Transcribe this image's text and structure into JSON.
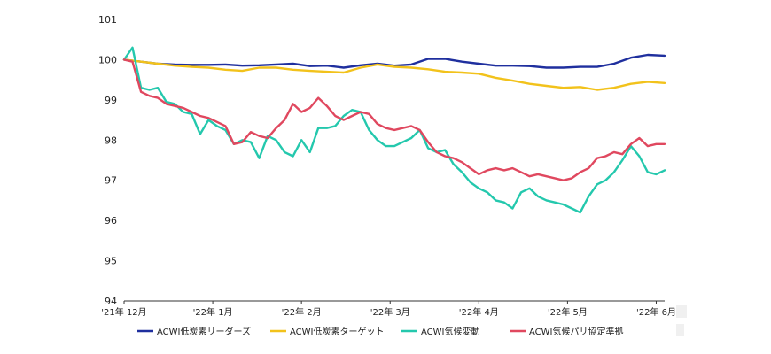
{
  "chart_data": {
    "type": "line",
    "title": "",
    "xlabel": "",
    "ylabel": "",
    "ylim": [
      94,
      101
    ],
    "yticks": [
      94,
      95,
      96,
      97,
      98,
      99,
      100,
      101
    ],
    "x_tick_labels": [
      "'21年 12月",
      "'22年 1月",
      "'22年 2月",
      "'22年 3月",
      "'22年 4月",
      "'22年 5月",
      "'22年 6月"
    ],
    "x_tick_index": [
      0,
      21,
      42,
      63,
      84,
      105,
      126
    ],
    "x_range": [
      0,
      128
    ],
    "legend_position": "bottom",
    "grid": false,
    "series": [
      {
        "name": "ACWI低炭素リーダーズ",
        "color": "#1f2f9e",
        "x": [
          0,
          4,
          8,
          12,
          16,
          20,
          24,
          28,
          32,
          36,
          40,
          44,
          48,
          52,
          56,
          60,
          64,
          68,
          72,
          76,
          80,
          84,
          88,
          92,
          96,
          100,
          104,
          108,
          112,
          116,
          120,
          124,
          128
        ],
        "values": [
          100.0,
          99.95,
          99.9,
          99.88,
          99.87,
          99.87,
          99.88,
          99.85,
          99.86,
          99.88,
          99.9,
          99.84,
          99.85,
          99.8,
          99.86,
          99.9,
          99.85,
          99.88,
          100.02,
          100.02,
          99.95,
          99.9,
          99.85,
          99.85,
          99.84,
          99.8,
          99.8,
          99.82,
          99.82,
          99.9,
          100.05,
          100.12,
          100.1
        ]
      },
      {
        "name": "ACWI低炭素ターゲット",
        "color": "#f2c21b",
        "x": [
          0,
          4,
          8,
          12,
          16,
          20,
          24,
          28,
          32,
          36,
          40,
          44,
          48,
          52,
          56,
          60,
          64,
          68,
          72,
          76,
          80,
          84,
          88,
          92,
          96,
          100,
          104,
          108,
          112,
          116,
          120,
          124,
          128
        ],
        "values": [
          100.0,
          99.95,
          99.9,
          99.85,
          99.82,
          99.8,
          99.75,
          99.72,
          99.8,
          99.8,
          99.75,
          99.72,
          99.7,
          99.68,
          99.8,
          99.88,
          99.82,
          99.8,
          99.76,
          99.7,
          99.68,
          99.65,
          99.55,
          99.48,
          99.4,
          99.35,
          99.3,
          99.32,
          99.25,
          99.3,
          99.4,
          99.45,
          99.42
        ]
      },
      {
        "name": "ACWI気候変動",
        "color": "#24c8ad",
        "x": [
          0,
          2,
          4,
          6,
          8,
          10,
          12,
          14,
          16,
          18,
          20,
          22,
          24,
          26,
          28,
          30,
          32,
          34,
          36,
          38,
          40,
          42,
          44,
          46,
          48,
          50,
          52,
          54,
          56,
          58,
          60,
          62,
          64,
          66,
          68,
          70,
          72,
          74,
          76,
          78,
          80,
          82,
          84,
          86,
          88,
          90,
          92,
          94,
          96,
          98,
          100,
          102,
          104,
          106,
          108,
          110,
          112,
          114,
          116,
          118,
          120,
          122,
          124,
          126,
          128
        ],
        "values": [
          100.0,
          100.3,
          99.3,
          99.25,
          99.3,
          98.95,
          98.9,
          98.7,
          98.65,
          98.15,
          98.5,
          98.35,
          98.25,
          97.9,
          98.0,
          97.95,
          97.55,
          98.1,
          98.0,
          97.7,
          97.6,
          98.0,
          97.7,
          98.3,
          98.3,
          98.35,
          98.6,
          98.75,
          98.7,
          98.25,
          98.0,
          97.85,
          97.85,
          97.95,
          98.05,
          98.25,
          97.8,
          97.7,
          97.75,
          97.4,
          97.2,
          96.95,
          96.8,
          96.7,
          96.5,
          96.45,
          96.3,
          96.7,
          96.8,
          96.6,
          96.5,
          96.45,
          96.4,
          96.3,
          96.2,
          96.6,
          96.9,
          97.0,
          97.2,
          97.5,
          97.85,
          97.6,
          97.2,
          97.15,
          97.25
        ]
      },
      {
        "name": "ACWI気候パリ協定準拠",
        "color": "#e0485f",
        "x": [
          0,
          2,
          4,
          6,
          8,
          10,
          12,
          14,
          16,
          18,
          20,
          22,
          24,
          26,
          28,
          30,
          32,
          34,
          36,
          38,
          40,
          42,
          44,
          46,
          48,
          50,
          52,
          54,
          56,
          58,
          60,
          62,
          64,
          66,
          68,
          70,
          72,
          74,
          76,
          78,
          80,
          82,
          84,
          86,
          88,
          90,
          92,
          94,
          96,
          98,
          100,
          102,
          104,
          106,
          108,
          110,
          112,
          114,
          116,
          118,
          120,
          122,
          124,
          126,
          128
        ],
        "values": [
          100.0,
          99.95,
          99.2,
          99.1,
          99.05,
          98.9,
          98.85,
          98.8,
          98.7,
          98.6,
          98.55,
          98.45,
          98.35,
          97.9,
          97.95,
          98.2,
          98.1,
          98.05,
          98.3,
          98.5,
          98.9,
          98.7,
          98.8,
          99.05,
          98.85,
          98.6,
          98.5,
          98.6,
          98.7,
          98.65,
          98.4,
          98.3,
          98.25,
          98.3,
          98.35,
          98.25,
          97.95,
          97.7,
          97.6,
          97.55,
          97.45,
          97.3,
          97.15,
          97.25,
          97.3,
          97.25,
          97.3,
          97.2,
          97.1,
          97.15,
          97.1,
          97.05,
          97.0,
          97.05,
          97.2,
          97.3,
          97.55,
          97.6,
          97.7,
          97.65,
          97.9,
          98.05,
          97.85,
          97.9,
          97.9
        ]
      }
    ]
  }
}
